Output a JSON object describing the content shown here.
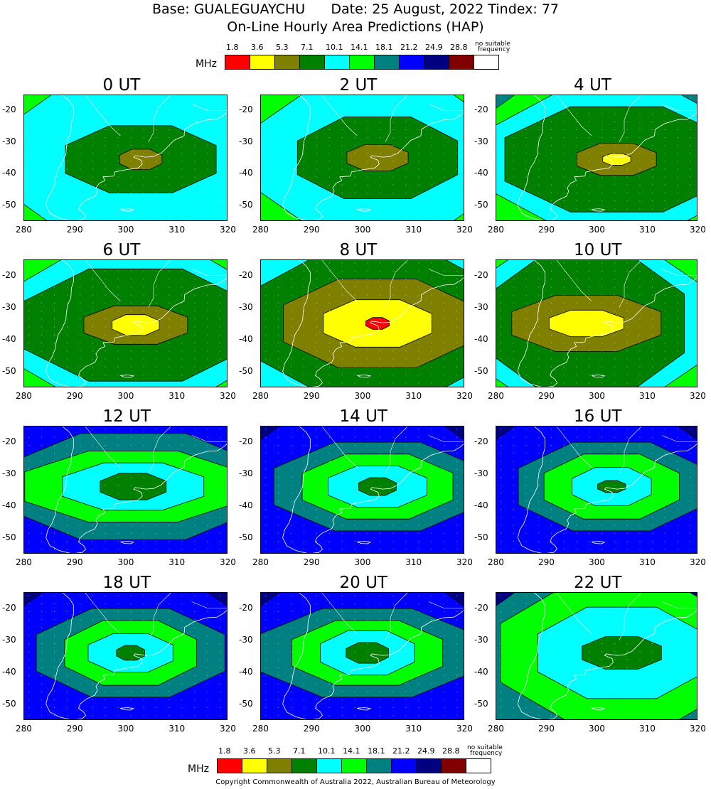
{
  "header": {
    "line1": "Base: GUALEGUAYCHU      Date: 25 August, 2022 Tindex: 77",
    "line2": "On-Line Hourly Area Predictions (HAP)"
  },
  "legend": {
    "unit": "MHz",
    "labels": [
      "1.8",
      "3.6",
      "5.3",
      "7.1",
      "10.1",
      "14.1",
      "18.1",
      "21.2",
      "24.9",
      "28.8"
    ],
    "no_suitable_line1": "no suitable",
    "no_suitable_line2": "frequency",
    "colors": [
      "#ff0000",
      "#ffff00",
      "#808000",
      "#008000",
      "#00ffff",
      "#00ff00",
      "#008080",
      "#0000ff",
      "#000080",
      "#800000",
      "#ffffff"
    ]
  },
  "copyright": "Copyright Commonwealth of Australia 2022, Australian Bureau of Meteorology",
  "chart_data": {
    "type": "heatmap",
    "title": "On-Line Hourly Area Predictions (HAP)",
    "base": "GUALEGUAYCHU",
    "date": "25 August, 2022",
    "tindex": 77,
    "unit": "MHz",
    "xlim": [
      280,
      320
    ],
    "ylim": [
      -55,
      -15
    ],
    "x_ticks": [
      "280",
      "290",
      "300",
      "310",
      "320"
    ],
    "y_ticks": [
      "-20",
      "-30",
      "-40",
      "-50"
    ],
    "contour_levels": [
      1.8,
      3.6,
      5.3,
      7.1,
      10.1,
      14.1,
      18.1,
      21.2,
      24.9,
      28.8
    ],
    "panels": [
      {
        "label": "0 UT",
        "center_lon": 303,
        "center_lat": -35.5,
        "background": "#00ff00",
        "bands": [
          [
            "#00ffff",
            27,
            31
          ],
          [
            "#008000",
            16,
            11.5
          ],
          [
            "#808000",
            4.5,
            3.5
          ]
        ],
        "corner": []
      },
      {
        "label": "2 UT",
        "center_lon": 303,
        "center_lat": -35,
        "background": "#00ff00",
        "bands": [
          [
            "#00ffff",
            25,
            28
          ],
          [
            "#008000",
            17,
            14
          ],
          [
            "#808000",
            6.5,
            4.5
          ]
        ],
        "corner": []
      },
      {
        "label": "4 UT",
        "center_lon": 304,
        "center_lat": -35.5,
        "background": "#00ff00",
        "bands": [
          [
            "#00ffff",
            28,
            24
          ],
          [
            "#008000",
            24,
            18
          ],
          [
            "#808000",
            8.5,
            5.5
          ],
          [
            "#ffff00",
            3,
            2
          ]
        ],
        "corner": [
          "#008080"
        ]
      },
      {
        "label": "6 UT",
        "center_lon": 302,
        "center_lat": -35.5,
        "background": "#00ff00",
        "bands": [
          [
            "#00ffff",
            28,
            26
          ],
          [
            "#008000",
            24,
            19
          ],
          [
            "#808000",
            11,
            6.5
          ],
          [
            "#ffff00",
            5,
            3.5
          ]
        ],
        "corner": []
      },
      {
        "label": "8 UT",
        "center_lon": 303,
        "center_lat": -35,
        "background": "#00ffff",
        "bands": [
          [
            "#008000",
            28,
            24
          ],
          [
            "#808000",
            20,
            15
          ],
          [
            "#ffff00",
            11.5,
            8
          ],
          [
            "#ff0000",
            2.5,
            2
          ]
        ],
        "corner": []
      },
      {
        "label": "10 UT",
        "center_lon": 298,
        "center_lat": -35,
        "background": "#00ff00",
        "bands": [
          [
            "#00ffff",
            26,
            28
          ],
          [
            "#008000",
            21,
            24
          ],
          [
            "#808000",
            16,
            9.5
          ],
          [
            "#ffff00",
            8,
            4.5
          ]
        ],
        "corner": []
      },
      {
        "label": "12 UT",
        "center_lon": 301.5,
        "center_lat": -34,
        "background": "#0000ff",
        "bands": [
          [
            "#008080",
            27,
            18
          ],
          [
            "#00ff00",
            23,
            12
          ],
          [
            "#00ffff",
            15,
            8
          ],
          [
            "#008000",
            7,
            4.5
          ]
        ],
        "corner": []
      },
      {
        "label": "14 UT",
        "center_lon": 303,
        "center_lat": -34,
        "background": "#0000ff",
        "bands": [
          [
            "#008080",
            22,
            15
          ],
          [
            "#00ff00",
            16,
            11
          ],
          [
            "#00ffff",
            10.5,
            7
          ],
          [
            "#008000",
            4,
            3
          ]
        ],
        "corner": [
          "#000080"
        ]
      },
      {
        "label": "16 UT",
        "center_lon": 303,
        "center_lat": -34,
        "background": "#0000ff",
        "bands": [
          [
            "#008080",
            20,
            15
          ],
          [
            "#00ff00",
            14.5,
            11
          ],
          [
            "#00ffff",
            8.5,
            6.5
          ],
          [
            "#008000",
            3,
            2
          ]
        ],
        "corner": [
          "#000080"
        ]
      },
      {
        "label": "18 UT",
        "center_lon": 301,
        "center_lat": -34,
        "background": "#0000ff",
        "bands": [
          [
            "#008080",
            20,
            15
          ],
          [
            "#00ff00",
            14,
            11
          ],
          [
            "#00ffff",
            9,
            6.5
          ],
          [
            "#008000",
            3,
            2.5
          ]
        ],
        "corner": [
          "#000080"
        ]
      },
      {
        "label": "20 UT",
        "center_lon": 301,
        "center_lat": -34,
        "background": "#0000ff",
        "bands": [
          [
            "#008080",
            23,
            15
          ],
          [
            "#00ff00",
            16,
            11
          ],
          [
            "#00ffff",
            10,
            7.5
          ],
          [
            "#008000",
            4.5,
            3.5
          ]
        ],
        "corner": [
          "#000080"
        ]
      },
      {
        "label": "22 UT",
        "center_lon": 305,
        "center_lat": -34,
        "background": "#008080",
        "bands": [
          [
            "#00ff00",
            26,
            24
          ],
          [
            "#00ffff",
            18,
            15.5
          ],
          [
            "#008000",
            8.5,
            5.5
          ]
        ],
        "corner": [
          "#000080"
        ]
      }
    ]
  }
}
